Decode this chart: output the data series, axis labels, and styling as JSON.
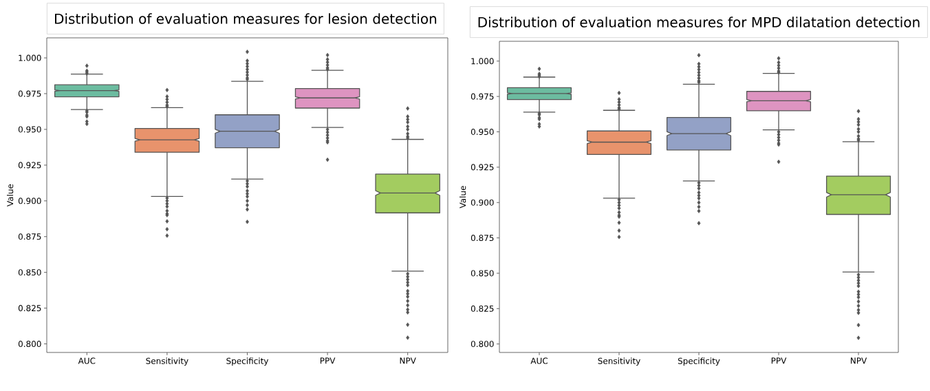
{
  "chart_data": [
    {
      "type": "box",
      "title": "Distribution of evaluation measures for lesion detection",
      "ylabel": "Value",
      "categories": [
        "AUC",
        "Sensitivity",
        "Specificity",
        "PPV",
        "NPV"
      ],
      "colors": [
        "#6cbca0",
        "#e8936c",
        "#93a1c6",
        "#de94c1",
        "#a3cc60"
      ],
      "boxes": [
        {
          "low": 0.9639,
          "q1": 0.9728,
          "median": 0.9771,
          "q3": 0.9812,
          "high": 0.9887,
          "outliers": [
            0.9945,
            0.991,
            0.99,
            0.989,
            0.963,
            0.962,
            0.96,
            0.959,
            0.9555,
            0.9538
          ]
        },
        {
          "low": 0.9031,
          "q1": 0.934,
          "median": 0.9427,
          "q3": 0.9506,
          "high": 0.9652,
          "outliers": [
            0.9775,
            0.973,
            0.971,
            0.969,
            0.967,
            0.966,
            0.902,
            0.9,
            0.898,
            0.896,
            0.893,
            0.891,
            0.89,
            0.8857,
            0.8802,
            0.8757
          ]
        },
        {
          "low": 0.9153,
          "q1": 0.9372,
          "median": 0.9487,
          "q3": 0.9602,
          "high": 0.9836,
          "outliers": [
            1.0042,
            0.998,
            0.996,
            0.994,
            0.992,
            0.99,
            0.988,
            0.986,
            0.985,
            0.914,
            0.912,
            0.91,
            0.907,
            0.905,
            0.903,
            0.9,
            0.897,
            0.894,
            0.8854
          ]
        },
        {
          "low": 0.9514,
          "q1": 0.9649,
          "median": 0.972,
          "q3": 0.9786,
          "high": 0.9913,
          "outliers": [
            1.002,
            0.999,
            0.997,
            0.995,
            0.993,
            0.992,
            0.95,
            0.948,
            0.946,
            0.944,
            0.942,
            0.941,
            0.9288
          ]
        },
        {
          "low": 0.8509,
          "q1": 0.8916,
          "median": 0.9055,
          "q3": 0.9187,
          "high": 0.943,
          "outliers": [
            0.9646,
            0.959,
            0.957,
            0.955,
            0.952,
            0.95,
            0.947,
            0.945,
            0.944,
            0.849,
            0.847,
            0.845,
            0.843,
            0.841,
            0.837,
            0.835,
            0.833,
            0.83,
            0.827,
            0.824,
            0.822,
            0.8134,
            0.8043
          ]
        }
      ],
      "ylim": [
        0.794,
        1.014
      ],
      "yticks": [
        {
          "value": 0.8,
          "label": "0.800"
        },
        {
          "value": 0.825,
          "label": "0.825"
        },
        {
          "value": 0.85,
          "label": "0.850"
        },
        {
          "value": 0.875,
          "label": "0.875"
        },
        {
          "value": 0.9,
          "label": "0.900"
        },
        {
          "value": 0.925,
          "label": "0.925"
        },
        {
          "value": 0.95,
          "label": "0.950"
        },
        {
          "value": 0.975,
          "label": "0.975"
        },
        {
          "value": 1.0,
          "label": "1.000"
        }
      ]
    },
    {
      "type": "box",
      "title": "Distribution of evaluation measures for MPD dilatation detection",
      "ylabel": "Value",
      "categories": [
        "AUC",
        "Sensitivity",
        "Specificity",
        "PPV",
        "NPV"
      ],
      "colors": [
        "#6cbca0",
        "#e8936c",
        "#93a1c6",
        "#de94c1",
        "#a3cc60"
      ],
      "boxes": [
        {
          "low": 0.9639,
          "q1": 0.9728,
          "median": 0.9771,
          "q3": 0.9812,
          "high": 0.9887,
          "outliers": [
            0.9945,
            0.991,
            0.99,
            0.989,
            0.963,
            0.962,
            0.96,
            0.959,
            0.9555,
            0.9538
          ]
        },
        {
          "low": 0.9031,
          "q1": 0.934,
          "median": 0.9427,
          "q3": 0.9506,
          "high": 0.9652,
          "outliers": [
            0.9775,
            0.973,
            0.971,
            0.969,
            0.967,
            0.966,
            0.902,
            0.9,
            0.898,
            0.896,
            0.893,
            0.891,
            0.89,
            0.8857,
            0.8802,
            0.8757
          ]
        },
        {
          "low": 0.9153,
          "q1": 0.9372,
          "median": 0.9487,
          "q3": 0.9602,
          "high": 0.9836,
          "outliers": [
            1.0042,
            0.998,
            0.996,
            0.994,
            0.992,
            0.99,
            0.988,
            0.986,
            0.985,
            0.914,
            0.912,
            0.91,
            0.907,
            0.905,
            0.903,
            0.9,
            0.897,
            0.894,
            0.8854
          ]
        },
        {
          "low": 0.9514,
          "q1": 0.9649,
          "median": 0.972,
          "q3": 0.9786,
          "high": 0.9913,
          "outliers": [
            1.002,
            0.999,
            0.997,
            0.995,
            0.993,
            0.992,
            0.95,
            0.948,
            0.946,
            0.944,
            0.942,
            0.941,
            0.9288
          ]
        },
        {
          "low": 0.8509,
          "q1": 0.8916,
          "median": 0.9055,
          "q3": 0.9187,
          "high": 0.943,
          "outliers": [
            0.9646,
            0.959,
            0.957,
            0.955,
            0.952,
            0.95,
            0.947,
            0.945,
            0.944,
            0.849,
            0.847,
            0.845,
            0.843,
            0.841,
            0.837,
            0.835,
            0.833,
            0.83,
            0.827,
            0.824,
            0.822,
            0.8134,
            0.8043
          ]
        }
      ],
      "ylim": [
        0.794,
        1.014
      ],
      "yticks": [
        {
          "value": 0.8,
          "label": "0.800"
        },
        {
          "value": 0.825,
          "label": "0.825"
        },
        {
          "value": 0.85,
          "label": "0.850"
        },
        {
          "value": 0.875,
          "label": "0.875"
        },
        {
          "value": 0.9,
          "label": "0.900"
        },
        {
          "value": 0.925,
          "label": "0.925"
        },
        {
          "value": 0.95,
          "label": "0.950"
        },
        {
          "value": 0.975,
          "label": "0.975"
        },
        {
          "value": 1.0,
          "label": "1.000"
        }
      ]
    }
  ]
}
